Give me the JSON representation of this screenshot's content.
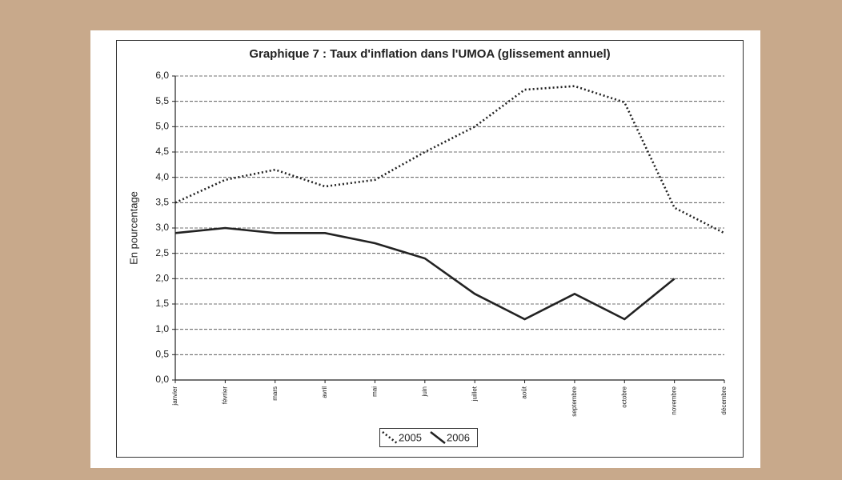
{
  "chart_data": {
    "type": "line",
    "title": "Graphique 7 : Taux d'inflation dans l'UMOA (glissement annuel)",
    "y_label": "En pourcentage",
    "categories": [
      "janvier",
      "février",
      "mars",
      "avril",
      "mai",
      "juin",
      "juillet",
      "août",
      "septembre",
      "octobre",
      "novembre",
      "décembre"
    ],
    "series": [
      {
        "name": "2005",
        "color": "#222222",
        "style": "dotted",
        "values": [
          3.5,
          3.95,
          4.15,
          3.82,
          3.95,
          4.5,
          5.0,
          5.73,
          5.8,
          5.48,
          3.4,
          2.9
        ]
      },
      {
        "name": "2006",
        "color": "#222222",
        "style": "solid",
        "values": [
          2.9,
          3.0,
          2.9,
          2.9,
          2.7,
          2.4,
          1.7,
          1.2,
          1.7,
          1.2,
          2.0,
          null
        ]
      }
    ],
    "ylim": [
      0,
      6
    ],
    "yticks": [
      {
        "value": 0,
        "label": "0,0"
      },
      {
        "value": 0.5,
        "label": "0,5"
      },
      {
        "value": 1,
        "label": "1,0"
      },
      {
        "value": 1.5,
        "label": "1,5"
      },
      {
        "value": 2,
        "label": "2,0"
      },
      {
        "value": 2.5,
        "label": "2,5"
      },
      {
        "value": 3,
        "label": "3,0"
      },
      {
        "value": 3.5,
        "label": "3,5"
      },
      {
        "value": 4,
        "label": "4,0"
      },
      {
        "value": 4.5,
        "label": "4,5"
      },
      {
        "value": 5,
        "label": "5,0"
      },
      {
        "value": 5.5,
        "label": "5,5"
      },
      {
        "value": 6,
        "label": "6,0"
      }
    ],
    "grid": true
  }
}
